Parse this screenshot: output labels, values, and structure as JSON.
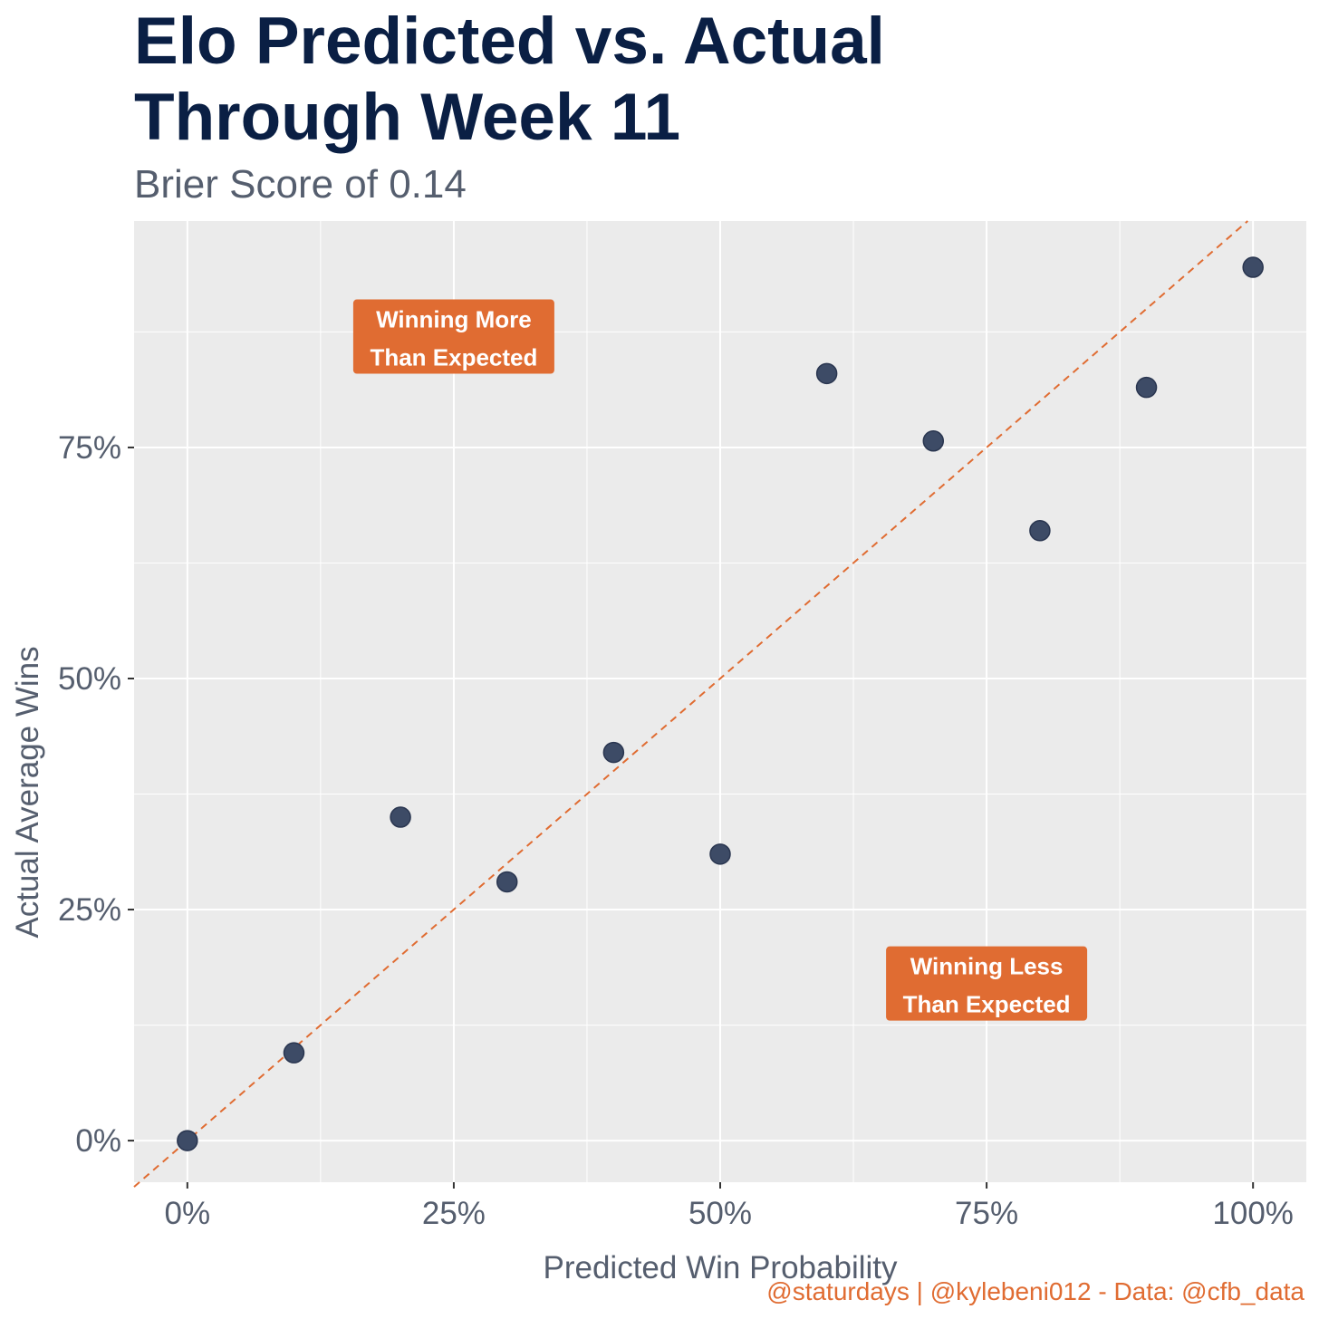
{
  "chart_data": {
    "type": "scatter",
    "title": "Elo Predicted vs. Actual\nThrough Week 11",
    "subtitle": "Brier Score of 0.14",
    "caption": "@staturdays | @kylebeni012 - Data: @cfb_data",
    "xlabel": "Predicted Win Probability",
    "ylabel": "Actual Average Wins",
    "xlim": [
      -0.05,
      1.05
    ],
    "ylim": [
      -0.045,
      0.995
    ],
    "x_ticks": [
      0,
      0.25,
      0.5,
      0.75,
      1.0
    ],
    "x_tick_labels": [
      "0%",
      "25%",
      "50%",
      "75%",
      "100%"
    ],
    "y_ticks": [
      0,
      0.25,
      0.5,
      0.75
    ],
    "y_tick_labels": [
      "0%",
      "25%",
      "50%",
      "75%"
    ],
    "grid": true,
    "reference_line": {
      "slope": 1,
      "intercept": 0,
      "style": "dashed",
      "color": "#e06c32"
    },
    "series": [
      {
        "color": "#3d4b66",
        "points": [
          {
            "x": 0.0,
            "y": 0.0
          },
          {
            "x": 0.1,
            "y": 0.095
          },
          {
            "x": 0.2,
            "y": 0.35
          },
          {
            "x": 0.3,
            "y": 0.28
          },
          {
            "x": 0.4,
            "y": 0.42
          },
          {
            "x": 0.5,
            "y": 0.31
          },
          {
            "x": 0.6,
            "y": 0.83
          },
          {
            "x": 0.7,
            "y": 0.757
          },
          {
            "x": 0.8,
            "y": 0.66
          },
          {
            "x": 0.9,
            "y": 0.815
          },
          {
            "x": 1.0,
            "y": 0.945
          }
        ]
      }
    ],
    "annotations": [
      {
        "lines": [
          "Winning More",
          "Than Expected"
        ],
        "x": 0.25,
        "y": 0.87
      },
      {
        "lines": [
          "Winning Less",
          "Than Expected"
        ],
        "x": 0.75,
        "y": 0.17
      }
    ],
    "colors": {
      "panel_background": "#ebebeb",
      "grid": "#ffffff",
      "point": "#3d4b66",
      "accent": "#e06c32",
      "title": "#0a1f44",
      "text": "#555e6e"
    }
  }
}
